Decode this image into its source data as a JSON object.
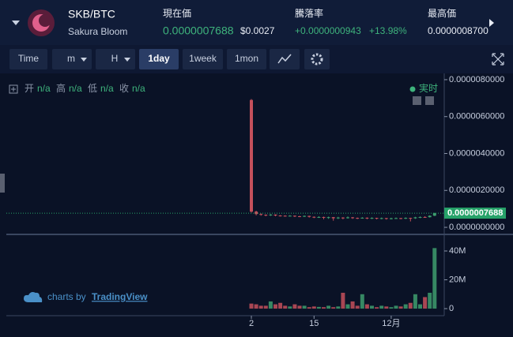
{
  "header": {
    "symbol": "SKB/BTC",
    "name": "Sakura Bloom",
    "stats": [
      {
        "label": "現在価",
        "value": "0.0000007688",
        "sub": "$0.0027"
      },
      {
        "label": "騰落率",
        "value": "+0.0000000943",
        "sub": "+13.98%"
      },
      {
        "label": "最高価",
        "value": "0.0000008700"
      }
    ]
  },
  "toolbar": [
    "Time",
    "m",
    "H",
    "1day",
    "1week",
    "1mon"
  ],
  "legend": {
    "items": [
      [
        "开",
        "n/a"
      ],
      [
        "高",
        "n/a"
      ],
      [
        "低",
        "n/a"
      ],
      [
        "收",
        "n/a"
      ]
    ],
    "status": "実时"
  },
  "watermark": {
    "prefix": "charts by",
    "brand": "TradingView"
  },
  "chart": {
    "type": "candlestick",
    "categories": [
      "2",
      null,
      null,
      null,
      null,
      null,
      null,
      null,
      null,
      null,
      null,
      null,
      null,
      "15",
      null,
      null,
      null,
      null,
      null,
      null,
      null,
      null,
      null,
      null,
      null,
      null,
      null,
      null,
      null,
      "12月",
      null,
      null,
      null,
      null,
      null,
      null,
      null,
      null,
      null
    ],
    "open": [
      6.9e-06,
      8.5e-07,
      7.2e-07,
      6.8e-07,
      6.5e-07,
      6.9e-07,
      6.4e-07,
      6.3e-07,
      6.1e-07,
      6.3e-07,
      6e-07,
      5.9e-07,
      6.2e-07,
      5.7e-07,
      5.5e-07,
      5.6e-07,
      5.2e-07,
      5.5e-07,
      4.9e-07,
      5.3e-07,
      5e-07,
      5.4e-07,
      5.1e-07,
      5e-07,
      5.2e-07,
      4.9e-07,
      5.1e-07,
      4.8e-07,
      5e-07,
      4.7e-07,
      4.9e-07,
      5e-07,
      4.8e-07,
      5.1e-07,
      4.9e-07,
      5.4e-07,
      5.6e-07,
      5.5e-07,
      6.3e-07
    ],
    "high": [
      6.95e-06,
      9e-07,
      7.5e-07,
      7e-07,
      7.2e-07,
      7e-07,
      6.6e-07,
      6.5e-07,
      6.6e-07,
      6.4e-07,
      6.2e-07,
      6.4e-07,
      6.3e-07,
      5.9e-07,
      6e-07,
      5.8e-07,
      5.8e-07,
      5.6e-07,
      5.7e-07,
      5.5e-07,
      5.9e-07,
      5.6e-07,
      5.3e-07,
      5.5e-07,
      5.4e-07,
      5.4e-07,
      5.2e-07,
      5.3e-07,
      5.1e-07,
      5.2e-07,
      5.3e-07,
      5.1e-07,
      5.4e-07,
      5.2e-07,
      5.7e-07,
      5.9e-07,
      6e-07,
      6.5e-07,
      7.9e-07
    ],
    "low": [
      8e-07,
      6.5e-07,
      6.3e-07,
      6e-07,
      6.2e-07,
      6e-07,
      5.9e-07,
      5.8e-07,
      5.9e-07,
      5.6e-07,
      5.5e-07,
      5.6e-07,
      5.3e-07,
      5e-07,
      5.1e-07,
      4.4e-07,
      4.6e-07,
      3.6e-07,
      4.5e-07,
      4.4e-07,
      4.7e-07,
      4.6e-07,
      4.5e-07,
      4.7e-07,
      4.4e-07,
      4.5e-07,
      4.3e-07,
      4.4e-07,
      4.2e-07,
      4.3e-07,
      4.6e-07,
      4.4e-07,
      4.5e-07,
      3.2e-07,
      4.6e-07,
      5e-07,
      5.2e-07,
      5.3e-07,
      6.1e-07
    ],
    "close": [
      8.5e-07,
      7.2e-07,
      6.8e-07,
      6.5e-07,
      6.9e-07,
      6.4e-07,
      6.3e-07,
      6.1e-07,
      6.3e-07,
      6e-07,
      5.9e-07,
      6.2e-07,
      5.7e-07,
      5.5e-07,
      5.6e-07,
      5.2e-07,
      5.5e-07,
      4.9e-07,
      5.3e-07,
      5e-07,
      5.4e-07,
      5.1e-07,
      5e-07,
      5.2e-07,
      4.9e-07,
      5.1e-07,
      4.8e-07,
      5e-07,
      4.7e-07,
      4.9e-07,
      5e-07,
      4.8e-07,
      5.1e-07,
      4.9e-07,
      5.4e-07,
      5.6e-07,
      5.5e-07,
      6.3e-07,
      7.688e-07
    ],
    "volume": [
      3500000,
      3000000,
      2000000,
      2000000,
      5000000,
      3000000,
      4000000,
      2000000,
      1500000,
      3000000,
      2000000,
      2000000,
      1000000,
      1500000,
      1200000,
      1000000,
      2000000,
      1000000,
      1500000,
      11000000,
      3000000,
      5000000,
      2000000,
      10000000,
      3000000,
      2000000,
      1000000,
      2000000,
      1500000,
      1000000,
      2000000,
      1500000,
      3000000,
      4000000,
      10000000,
      3000000,
      8000000,
      11000000,
      42000000
    ],
    "up_color": "#3e9d6e",
    "down_color": "#c4505c",
    "ylim": [
      -3.4e-07,
      8.34e-06
    ],
    "yticks": [
      {
        "value": 0,
        "label": "0.0000000000"
      },
      {
        "value": 2e-06,
        "label": "0.0000020000"
      },
      {
        "value": 4e-06,
        "label": "0.0000040000"
      },
      {
        "value": 6e-06,
        "label": "0.0000060000"
      },
      {
        "value": 8e-06,
        "label": "0.0000080000"
      }
    ],
    "price_line": {
      "value": 7.688e-07,
      "label": "0.0000007688",
      "color": "#26a269"
    },
    "vlim": [
      -4900000,
      50400000
    ],
    "vticks": [
      0,
      {
        "value": 20000000,
        "label": "20M"
      },
      {
        "value": 40000000,
        "label": "40M"
      }
    ]
  }
}
